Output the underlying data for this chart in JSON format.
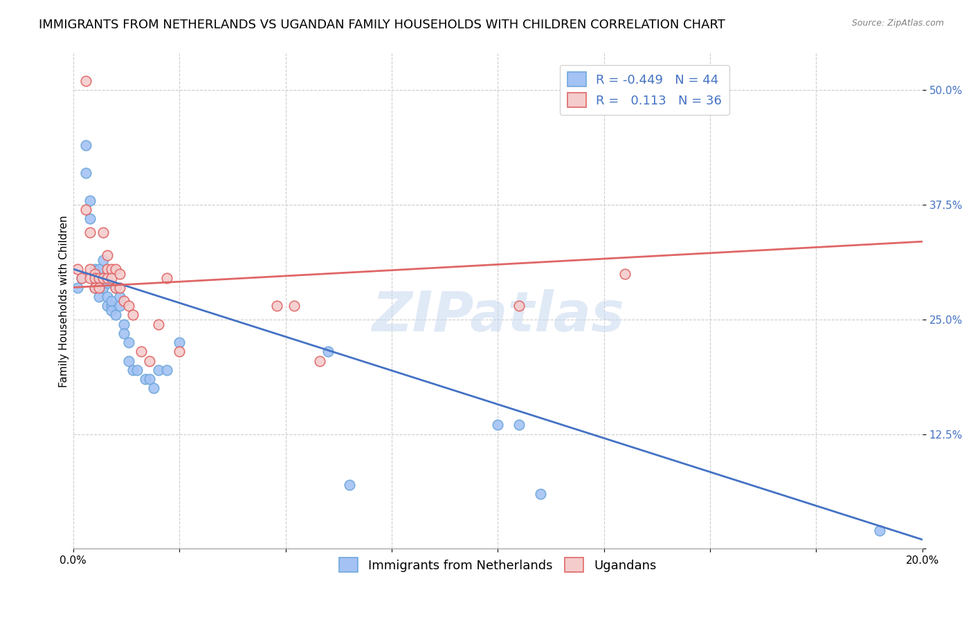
{
  "title": "IMMIGRANTS FROM NETHERLANDS VS UGANDAN FAMILY HOUSEHOLDS WITH CHILDREN CORRELATION CHART",
  "source": "Source: ZipAtlas.com",
  "ylabel": "Family Households with Children",
  "xlim": [
    0.0,
    0.2
  ],
  "ylim": [
    0.0,
    0.54
  ],
  "yticks": [
    0.0,
    0.125,
    0.25,
    0.375,
    0.5
  ],
  "ytick_labels": [
    "",
    "12.5%",
    "25.0%",
    "37.5%",
    "50.0%"
  ],
  "xticks": [
    0.0,
    0.025,
    0.05,
    0.075,
    0.1,
    0.125,
    0.15,
    0.175,
    0.2
  ],
  "xtick_labels": [
    "0.0%",
    "",
    "",
    "",
    "",
    "",
    "",
    "",
    "20.0%"
  ],
  "blue_color": "#a4c2f4",
  "pink_color": "#f4cccc",
  "blue_edge_color": "#6fa8dc",
  "pink_edge_color": "#e06666",
  "line_blue": "#4472c4",
  "line_pink": "#cc4125",
  "R_blue": -0.449,
  "N_blue": 44,
  "R_pink": 0.113,
  "N_pink": 36,
  "legend_label_blue": "Immigrants from Netherlands",
  "legend_label_pink": "Ugandans",
  "watermark": "ZIPatlas",
  "blue_x": [
    0.001,
    0.002,
    0.003,
    0.003,
    0.004,
    0.004,
    0.005,
    0.005,
    0.005,
    0.006,
    0.006,
    0.006,
    0.006,
    0.007,
    0.007,
    0.007,
    0.008,
    0.008,
    0.008,
    0.009,
    0.009,
    0.009,
    0.01,
    0.01,
    0.011,
    0.011,
    0.012,
    0.012,
    0.013,
    0.013,
    0.014,
    0.015,
    0.017,
    0.018,
    0.019,
    0.02,
    0.022,
    0.025,
    0.06,
    0.065,
    0.1,
    0.105,
    0.11,
    0.19
  ],
  "blue_y": [
    0.285,
    0.295,
    0.44,
    0.41,
    0.38,
    0.36,
    0.305,
    0.295,
    0.285,
    0.305,
    0.295,
    0.285,
    0.275,
    0.315,
    0.295,
    0.285,
    0.29,
    0.275,
    0.265,
    0.265,
    0.27,
    0.26,
    0.285,
    0.255,
    0.275,
    0.265,
    0.245,
    0.235,
    0.225,
    0.205,
    0.195,
    0.195,
    0.185,
    0.185,
    0.175,
    0.195,
    0.195,
    0.225,
    0.215,
    0.07,
    0.135,
    0.135,
    0.06,
    0.02
  ],
  "pink_x": [
    0.001,
    0.002,
    0.003,
    0.003,
    0.004,
    0.004,
    0.004,
    0.005,
    0.005,
    0.005,
    0.006,
    0.006,
    0.007,
    0.007,
    0.008,
    0.008,
    0.008,
    0.009,
    0.009,
    0.01,
    0.01,
    0.011,
    0.011,
    0.012,
    0.013,
    0.014,
    0.016,
    0.018,
    0.02,
    0.022,
    0.025,
    0.048,
    0.052,
    0.058,
    0.105,
    0.13
  ],
  "pink_y": [
    0.305,
    0.295,
    0.37,
    0.51,
    0.345,
    0.305,
    0.295,
    0.3,
    0.295,
    0.285,
    0.295,
    0.285,
    0.345,
    0.295,
    0.32,
    0.305,
    0.295,
    0.305,
    0.295,
    0.305,
    0.285,
    0.3,
    0.285,
    0.27,
    0.265,
    0.255,
    0.215,
    0.205,
    0.245,
    0.295,
    0.215,
    0.265,
    0.265,
    0.205,
    0.265,
    0.3
  ],
  "blue_line_x": [
    0.0,
    0.2
  ],
  "blue_line_y": [
    0.305,
    0.01
  ],
  "pink_line_x": [
    0.0,
    0.2
  ],
  "pink_line_y": [
    0.285,
    0.335
  ],
  "title_fontsize": 13,
  "label_fontsize": 11,
  "tick_fontsize": 11,
  "legend_fontsize": 13
}
